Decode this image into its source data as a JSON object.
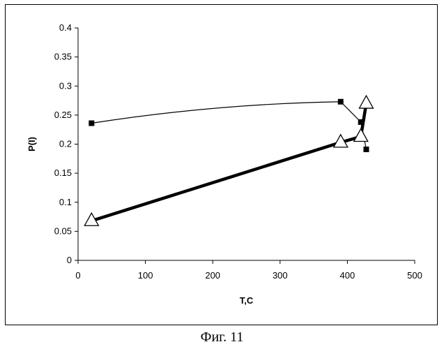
{
  "caption": "Фиг. 11",
  "chart_data": {
    "type": "line",
    "xlabel": "T,C",
    "ylabel": "P(I)",
    "xlim": [
      0,
      500
    ],
    "ylim": [
      0,
      0.4
    ],
    "xticks": [
      0,
      100,
      200,
      300,
      400,
      500
    ],
    "yticks": [
      0,
      0.05,
      0.1,
      0.15,
      0.2,
      0.25,
      0.3,
      0.35,
      0.4
    ],
    "grid": false,
    "legend": "none",
    "series": [
      {
        "marker": "square",
        "color": "#000000",
        "line": "thin",
        "points": [
          [
            20,
            0.236
          ],
          [
            390,
            0.273
          ],
          [
            420,
            0.238
          ],
          [
            428,
            0.191
          ]
        ]
      },
      {
        "marker": "triangle-open",
        "color": "#000000",
        "line": "thick",
        "points": [
          [
            20,
            0.068
          ],
          [
            390,
            0.203
          ],
          [
            420,
            0.213
          ],
          [
            428,
            0.27
          ]
        ]
      }
    ]
  }
}
